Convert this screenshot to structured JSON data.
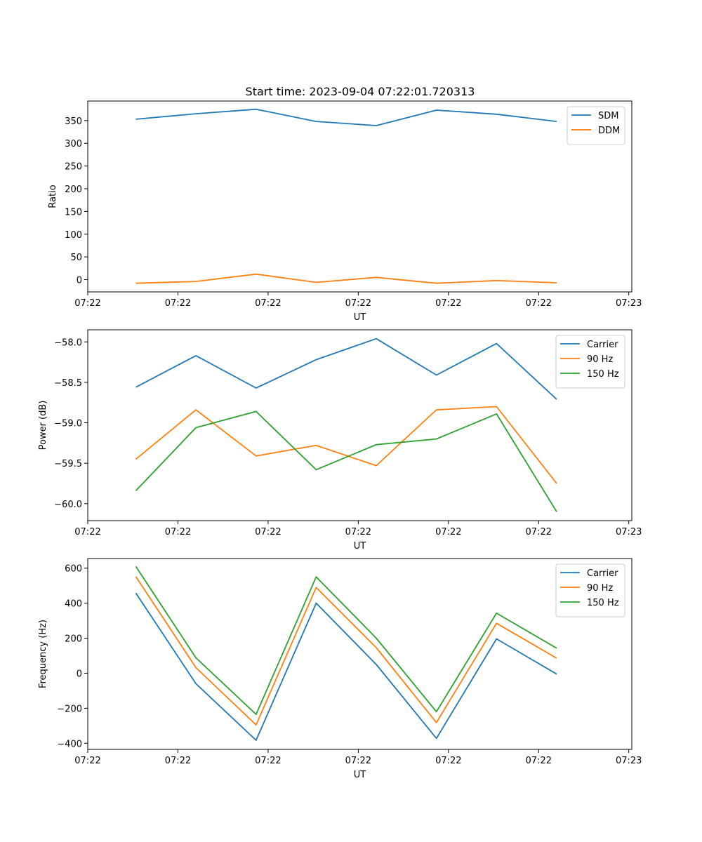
{
  "figure": {
    "title": "Start time: 2023-09-04 07:22:01.720313"
  },
  "chart_data": [
    {
      "type": "line",
      "ylabel": "Ratio",
      "xlabel": "UT",
      "x": [
        1,
        2,
        3,
        4,
        5,
        6,
        7,
        8
      ],
      "xlim": [
        0.2,
        9.25
      ],
      "xtick_positions": [
        0.2,
        1.7,
        3.2,
        4.7,
        6.2,
        7.7,
        9.2
      ],
      "xtick_labels": [
        "07:22",
        "07:22",
        "07:22",
        "07:22",
        "07:22",
        "07:22",
        "07:23"
      ],
      "ylim": [
        -27,
        393
      ],
      "yticks": [
        0,
        50,
        100,
        150,
        200,
        250,
        300,
        350
      ],
      "series": [
        {
          "name": "SDM",
          "color": "#1f77b4",
          "values": [
            353,
            365,
            375,
            348,
            339,
            373,
            364,
            348
          ]
        },
        {
          "name": "DDM",
          "color": "#ff7f0e",
          "values": [
            -8,
            -4,
            12,
            -6,
            5,
            -8,
            -2,
            -7
          ]
        }
      ]
    },
    {
      "type": "line",
      "ylabel": "Power (dB)",
      "xlabel": "UT",
      "x": [
        1,
        2,
        3,
        4,
        5,
        6,
        7,
        8
      ],
      "xlim": [
        0.2,
        9.25
      ],
      "xtick_positions": [
        0.2,
        1.7,
        3.2,
        4.7,
        6.2,
        7.7,
        9.2
      ],
      "xtick_labels": [
        "07:22",
        "07:22",
        "07:22",
        "07:22",
        "07:22",
        "07:22",
        "07:23"
      ],
      "ylim": [
        -60.21,
        -57.85
      ],
      "yticks": [
        -60.0,
        -59.5,
        -59.0,
        -58.5,
        -58.0
      ],
      "series": [
        {
          "name": "Carrier",
          "color": "#1f77b4",
          "values": [
            -58.56,
            -58.17,
            -58.57,
            -58.22,
            -57.96,
            -58.41,
            -58.02,
            -58.71
          ]
        },
        {
          "name": "90 Hz",
          "color": "#ff7f0e",
          "values": [
            -59.45,
            -58.84,
            -59.41,
            -59.28,
            -59.53,
            -58.84,
            -58.8,
            -59.75
          ]
        },
        {
          "name": "150 Hz",
          "color": "#2ca02c",
          "values": [
            -59.84,
            -59.06,
            -58.86,
            -59.58,
            -59.27,
            -59.2,
            -58.89,
            -60.1
          ]
        }
      ]
    },
    {
      "type": "line",
      "ylabel": "Frequency (Hz)",
      "xlabel": "UT",
      "x": [
        1,
        2,
        3,
        4,
        5,
        6,
        7,
        8
      ],
      "xlim": [
        0.2,
        9.25
      ],
      "xtick_positions": [
        0.2,
        1.7,
        3.2,
        4.7,
        6.2,
        7.7,
        9.2
      ],
      "xtick_labels": [
        "07:22",
        "07:22",
        "07:22",
        "07:22",
        "07:22",
        "07:22",
        "07:23"
      ],
      "ylim": [
        -435,
        655
      ],
      "yticks": [
        -400,
        -200,
        0,
        200,
        400,
        600
      ],
      "series": [
        {
          "name": "Carrier",
          "color": "#1f77b4",
          "values": [
            458,
            -60,
            -383,
            400,
            50,
            -372,
            196,
            -5
          ]
        },
        {
          "name": "90 Hz",
          "color": "#ff7f0e",
          "values": [
            552,
            32,
            -295,
            490,
            146,
            -282,
            285,
            86
          ]
        },
        {
          "name": "150 Hz",
          "color": "#2ca02c",
          "values": [
            610,
            88,
            -235,
            550,
            200,
            -220,
            343,
            143
          ]
        }
      ]
    }
  ]
}
